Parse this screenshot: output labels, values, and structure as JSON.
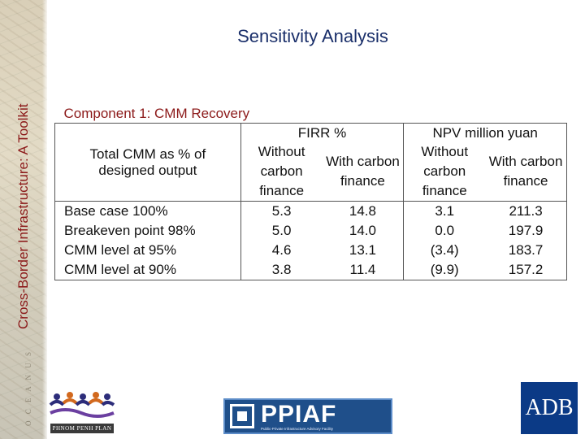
{
  "side_title": "Cross-Border Infrastructure: A Toolkit",
  "map_decoration_text": "O C E A N U S",
  "slide_title": "Sensitivity Analysis",
  "table": {
    "component_label": "Component 1: CMM Recovery",
    "row_header": "Total CMM as % of designed output",
    "groups": [
      "FIRR %",
      "NPV million yuan"
    ],
    "subheaders": [
      "Without carbon finance",
      "With carbon finance",
      "Without carbon finance",
      "With carbon finance"
    ],
    "rows": [
      {
        "label": "Base case 100%",
        "values": [
          "5.3",
          "14.8",
          "3.1",
          "211.3"
        ]
      },
      {
        "label": "Breakeven point 98%",
        "values": [
          "5.0",
          "14.0",
          "0.0",
          "197.9"
        ]
      },
      {
        "label": "CMM level at 95%",
        "values": [
          "4.6",
          "13.1",
          "(3.4)",
          "183.7"
        ]
      },
      {
        "label": "CMM level at 90%",
        "values": [
          "3.8",
          "11.4",
          "(9.9)",
          "157.2"
        ]
      }
    ]
  },
  "logos": {
    "left_logo_text": "PHNOM PENH PLAN",
    "ppiaf_word": "PPIAF",
    "ppiaf_sub": "Public-Private Infrastructure Advisory Facility",
    "adb_word": "ADB"
  },
  "colors": {
    "title": "#1a2f6a",
    "accent_red": "#8c1a1a",
    "adb_blue": "#0b3a86",
    "ppiaf_blue": "#1f4f8a"
  }
}
